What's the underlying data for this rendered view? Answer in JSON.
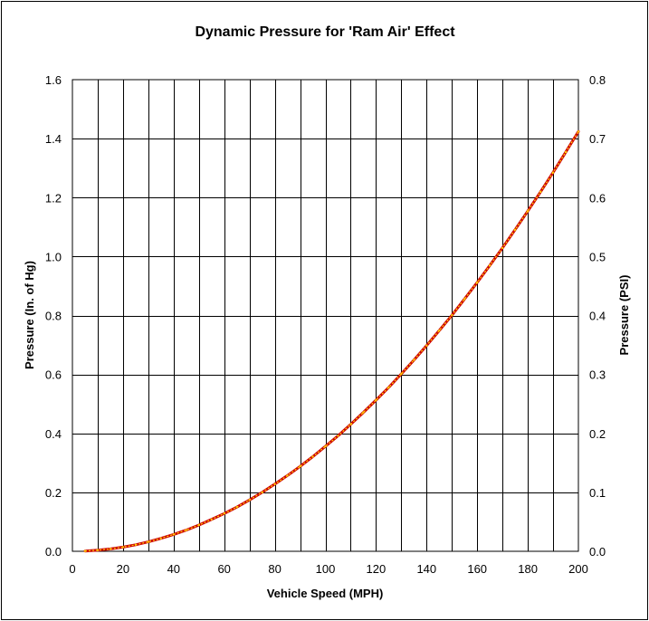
{
  "chart_data": {
    "type": "line",
    "title": "Dynamic Pressure for 'Ram Air' Effect",
    "xlabel": "Vehicle Speed (MPH)",
    "ylabel": "Pressure (In. of Hg)",
    "y2label": "Pressure (PSI)",
    "xlim": [
      0,
      200
    ],
    "ylim": [
      0,
      1.6
    ],
    "y2lim": [
      0,
      0.8
    ],
    "x_ticks": [
      0,
      20,
      40,
      60,
      80,
      100,
      120,
      140,
      160,
      180,
      200
    ],
    "x_tick_labels": [
      "0",
      "20",
      "40",
      "60",
      "80",
      "100",
      "120",
      "140",
      "160",
      "180",
      "200"
    ],
    "y_ticks": [
      0,
      0.2,
      0.4,
      0.6,
      0.8,
      1.0,
      1.2,
      1.4,
      1.6
    ],
    "y_tick_labels": [
      "0.0",
      "0.2",
      "0.4",
      "0.6",
      "0.8",
      "1.0",
      "1.2",
      "1.4",
      "1.6"
    ],
    "y2_ticks": [
      0,
      0.1,
      0.2,
      0.3,
      0.4,
      0.5,
      0.6,
      0.7,
      0.8
    ],
    "y2_tick_labels": [
      "0.0",
      "0.1",
      "0.2",
      "0.3",
      "0.4",
      "0.5",
      "0.6",
      "0.7",
      "0.8"
    ],
    "x_gridline_step": 10,
    "grid": true,
    "series": [
      {
        "name": "Dynamic Pressure",
        "x": [
          5,
          10,
          15,
          20,
          25,
          30,
          35,
          40,
          45,
          50,
          55,
          60,
          65,
          70,
          75,
          80,
          85,
          90,
          95,
          100,
          105,
          110,
          115,
          120,
          125,
          130,
          135,
          140,
          145,
          150,
          155,
          160,
          165,
          170,
          175,
          180,
          185,
          190,
          195,
          200
        ],
        "values": [
          0.001,
          0.004,
          0.008,
          0.014,
          0.022,
          0.032,
          0.044,
          0.057,
          0.072,
          0.089,
          0.108,
          0.128,
          0.15,
          0.174,
          0.2,
          0.228,
          0.257,
          0.288,
          0.321,
          0.356,
          0.392,
          0.431,
          0.471,
          0.513,
          0.556,
          0.602,
          0.649,
          0.698,
          0.749,
          0.801,
          0.856,
          0.912,
          0.97,
          1.029,
          1.091,
          1.154,
          1.219,
          1.285,
          1.354,
          1.424
        ],
        "line_color": "#cc0000",
        "marker_color": "#ffcc00"
      }
    ]
  }
}
